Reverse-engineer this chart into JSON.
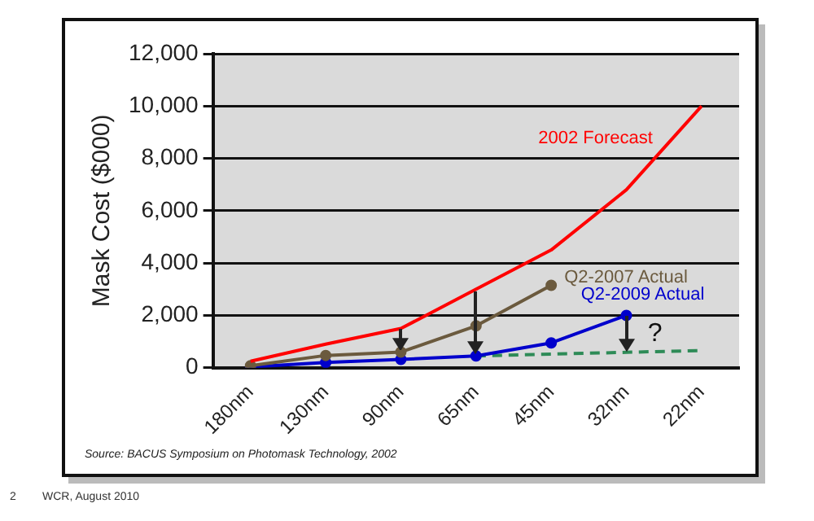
{
  "chart_data": {
    "type": "line",
    "ylabel": "Mask Cost ($000)",
    "categories": [
      "180nm",
      "130nm",
      "90nm",
      "65nm",
      "45nm",
      "32nm",
      "22nm"
    ],
    "ylim": [
      0,
      12000
    ],
    "yticks": [
      {
        "value": 0,
        "label": "0"
      },
      {
        "value": 2000,
        "label": "2,000"
      },
      {
        "value": 4000,
        "label": "4,000"
      },
      {
        "value": 6000,
        "label": "6,000"
      },
      {
        "value": 8000,
        "label": "8,000"
      },
      {
        "value": 10000,
        "label": "10,000"
      },
      {
        "value": 12000,
        "label": "12,000"
      }
    ],
    "grid": "y",
    "legend": false,
    "series": [
      {
        "name": "2002 Forecast",
        "color": "#ff0000",
        "marker": "none",
        "line_style": "solid",
        "values": [
          250,
          900,
          1500,
          3000,
          4500,
          6800,
          10000
        ]
      },
      {
        "name": "Q2-2007 Actual",
        "color": "#6b5a3e",
        "marker": "circle",
        "line_style": "solid",
        "values": [
          80,
          470,
          600,
          1600,
          3150,
          null,
          null
        ]
      },
      {
        "name": "Q2-2009 Actual",
        "color": "#0000cc",
        "marker": "circle",
        "line_style": "solid",
        "values": [
          30,
          200,
          320,
          450,
          950,
          2000,
          null
        ]
      },
      {
        "color": "#2e8b57",
        "marker": "none",
        "line_style": "dashed",
        "values": [
          null,
          null,
          null,
          450,
          520,
          590,
          660
        ]
      }
    ],
    "annotations": [
      "?",
      "Source: BACUS Symposium on Photomask Technology, 2002",
      "WCR, August 2010",
      "2"
    ]
  }
}
